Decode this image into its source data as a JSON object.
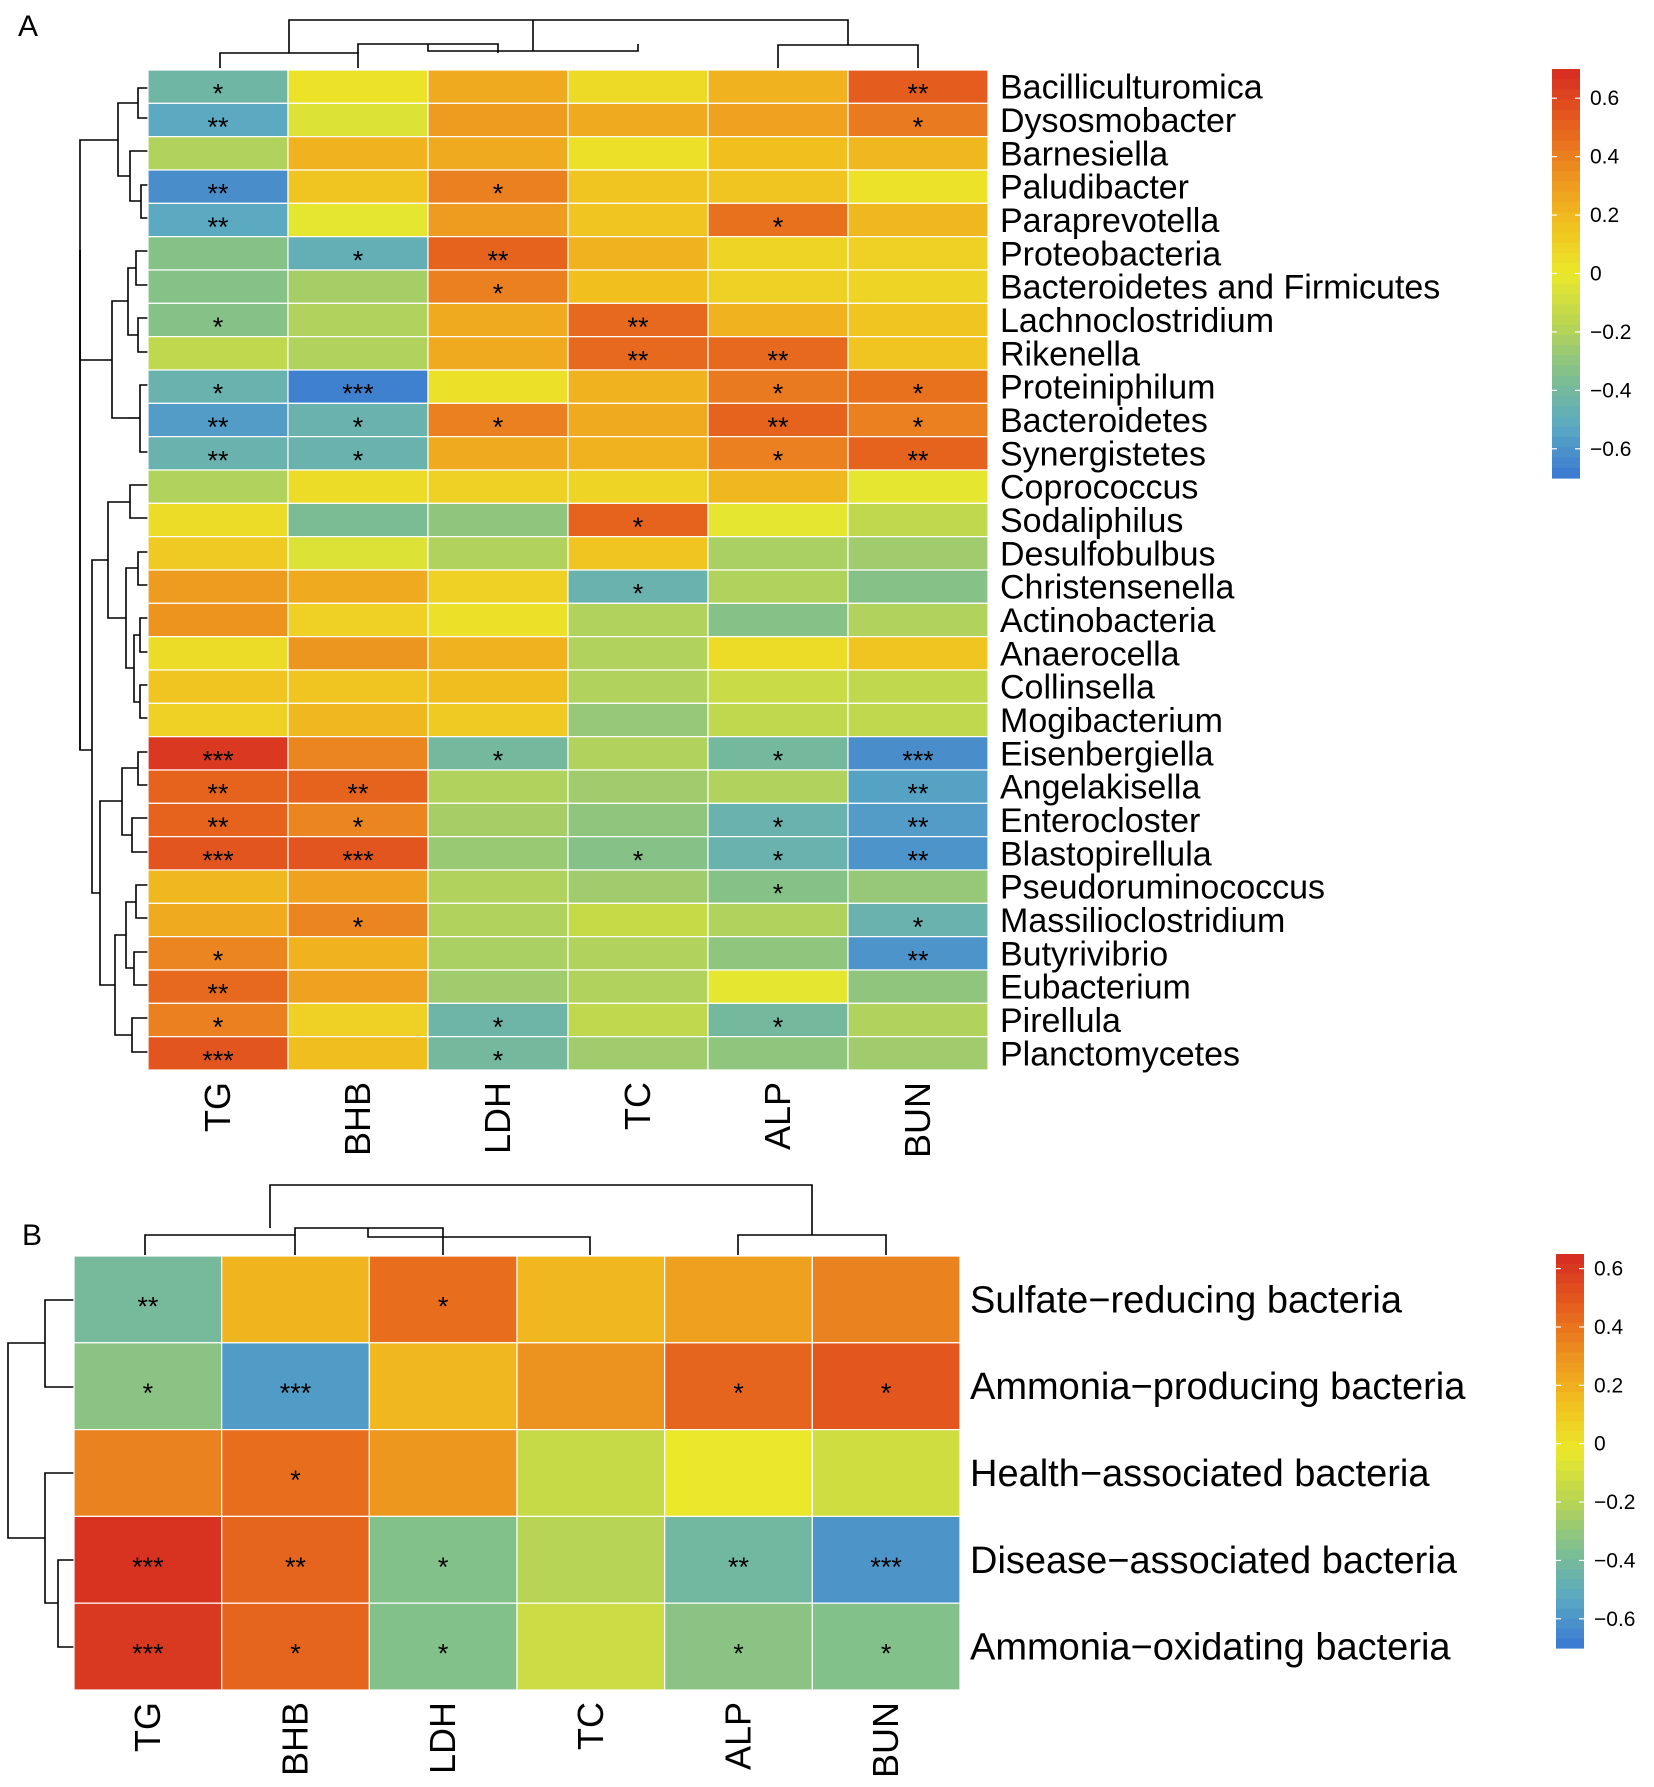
{
  "chart_data": [
    {
      "panel": "A",
      "type": "heatmap",
      "columns": [
        "TG",
        "BHB",
        "LDH",
        "TC",
        "ALP",
        "BUN"
      ],
      "rows": [
        "Bacilliculturomica",
        "Dysosmobacter",
        "Barnesiella",
        "Paludibacter",
        "Paraprevotella",
        "Proteobacteria",
        "Bacteroidetes and Firmicutes",
        "Lachnoclostridium",
        "Rikenella",
        "Proteiniphilum",
        "Bacteroidetes",
        "Synergistetes",
        "Coprococcus",
        "Sodaliphilus",
        "Desulfobulbus",
        "Christensenella",
        "Actinobacteria",
        "Anaerocella",
        "Collinsella",
        "Mogibacterium",
        "Eisenbergiella",
        "Angelakisella",
        "Enterocloster",
        "Blastopirellula",
        "Pseudoruminococcus",
        "Massilioclostridium",
        "Butyrivibrio",
        "Eubacterium",
        "Pirellula",
        "Planctomycetes"
      ],
      "values": [
        [
          -0.42,
          0.02,
          0.25,
          0.06,
          0.22,
          0.52
        ],
        [
          -0.52,
          -0.05,
          0.3,
          0.25,
          0.28,
          0.42
        ],
        [
          -0.2,
          0.22,
          0.25,
          0.03,
          0.17,
          0.2
        ],
        [
          -0.62,
          0.15,
          0.4,
          0.15,
          0.15,
          0.02
        ],
        [
          -0.52,
          -0.02,
          0.3,
          0.15,
          0.45,
          0.2
        ],
        [
          -0.33,
          -0.48,
          0.5,
          0.22,
          0.08,
          0.1
        ],
        [
          -0.33,
          -0.23,
          0.4,
          0.17,
          0.1,
          0.08
        ],
        [
          -0.33,
          -0.2,
          0.25,
          0.48,
          0.22,
          0.15
        ],
        [
          -0.15,
          -0.2,
          0.25,
          0.48,
          0.48,
          0.15
        ],
        [
          -0.45,
          -0.67,
          0.03,
          0.22,
          0.42,
          0.45
        ],
        [
          -0.57,
          -0.45,
          0.4,
          0.25,
          0.5,
          0.4
        ],
        [
          -0.45,
          -0.45,
          0.25,
          0.22,
          0.4,
          0.5
        ],
        [
          -0.2,
          0.05,
          0.1,
          0.08,
          0.2,
          -0.02
        ],
        [
          0.05,
          -0.37,
          -0.3,
          0.5,
          -0.02,
          -0.15
        ],
        [
          0.13,
          -0.05,
          -0.2,
          0.15,
          -0.22,
          -0.25
        ],
        [
          0.3,
          0.25,
          0.1,
          -0.45,
          -0.2,
          -0.33
        ],
        [
          0.33,
          0.1,
          0.03,
          -0.2,
          -0.33,
          -0.2
        ],
        [
          0.05,
          0.32,
          0.22,
          -0.2,
          0.05,
          0.15
        ],
        [
          0.15,
          0.15,
          0.18,
          -0.2,
          -0.12,
          -0.15
        ],
        [
          0.1,
          0.2,
          0.13,
          -0.28,
          -0.15,
          -0.15
        ],
        [
          0.65,
          0.38,
          -0.4,
          -0.2,
          -0.4,
          -0.62
        ],
        [
          0.5,
          0.5,
          -0.2,
          -0.25,
          -0.2,
          -0.55
        ],
        [
          0.5,
          0.38,
          -0.23,
          -0.3,
          -0.45,
          -0.57
        ],
        [
          0.55,
          0.55,
          -0.27,
          -0.33,
          -0.45,
          -0.6
        ],
        [
          0.2,
          0.28,
          -0.2,
          -0.25,
          -0.33,
          -0.28
        ],
        [
          0.25,
          0.38,
          -0.2,
          -0.13,
          -0.2,
          -0.45
        ],
        [
          0.38,
          0.22,
          -0.22,
          -0.2,
          -0.3,
          -0.6
        ],
        [
          0.48,
          0.28,
          -0.25,
          -0.2,
          -0.02,
          -0.3
        ],
        [
          0.4,
          0.1,
          -0.43,
          -0.15,
          -0.4,
          -0.2
        ],
        [
          0.55,
          0.18,
          -0.4,
          -0.25,
          -0.3,
          -0.25
        ]
      ],
      "stars": [
        [
          "*",
          "",
          "",
          "",
          "",
          "**"
        ],
        [
          "**",
          "",
          "",
          "",
          "",
          "*"
        ],
        [
          "",
          "",
          "",
          "",
          "",
          ""
        ],
        [
          "**",
          "",
          "*",
          "",
          "",
          ""
        ],
        [
          "**",
          "",
          "",
          "",
          "*",
          ""
        ],
        [
          "",
          "*",
          "**",
          "",
          "",
          ""
        ],
        [
          "",
          "",
          "*",
          "",
          "",
          ""
        ],
        [
          "*",
          "",
          "",
          "**",
          "",
          ""
        ],
        [
          "",
          "",
          "",
          "**",
          "**",
          ""
        ],
        [
          "*",
          "***",
          "",
          "",
          "*",
          "*"
        ],
        [
          "**",
          "*",
          "*",
          "",
          "**",
          "*"
        ],
        [
          "**",
          "*",
          "",
          "",
          "*",
          "**"
        ],
        [
          "",
          "",
          "",
          "",
          "",
          ""
        ],
        [
          "",
          "",
          "",
          "*",
          "",
          ""
        ],
        [
          "",
          "",
          "",
          "",
          "",
          ""
        ],
        [
          "",
          "",
          "",
          "*",
          "",
          ""
        ],
        [
          "",
          "",
          "",
          "",
          "",
          ""
        ],
        [
          "",
          "",
          "",
          "",
          "",
          ""
        ],
        [
          "",
          "",
          "",
          "",
          "",
          ""
        ],
        [
          "",
          "",
          "",
          "",
          "",
          ""
        ],
        [
          "***",
          "",
          "*",
          "",
          "*",
          "***"
        ],
        [
          "**",
          "**",
          "",
          "",
          "",
          "**"
        ],
        [
          "**",
          "*",
          "",
          "",
          "*",
          "**"
        ],
        [
          "***",
          "***",
          "",
          "*",
          "*",
          "**"
        ],
        [
          "",
          "",
          "",
          "",
          "*",
          ""
        ],
        [
          "",
          "*",
          "",
          "",
          "",
          "*"
        ],
        [
          "*",
          "",
          "",
          "",
          "",
          "**"
        ],
        [
          "**",
          "",
          "",
          "",
          "",
          ""
        ],
        [
          "*",
          "",
          "*",
          "",
          "*",
          ""
        ],
        [
          "***",
          "",
          "*",
          "",
          "",
          ""
        ]
      ],
      "color_scale": {
        "min": -0.7,
        "max": 0.7,
        "stops": [
          "#3a78d2",
          "#5aa9c3",
          "#7fbf8f",
          "#b9d553",
          "#ebe82a",
          "#f1bf1f",
          "#ec8e1f",
          "#e55c1e",
          "#d52a22"
        ],
        "ticks": [
          "0.6",
          "0.4",
          "0.2",
          "0",
          "−0.2",
          "−0.4",
          "−0.6"
        ]
      }
    },
    {
      "panel": "B",
      "type": "heatmap",
      "columns": [
        "TG",
        "BHB",
        "LDH",
        "TC",
        "ALP",
        "BUN"
      ],
      "rows": [
        "Sulfate−reducing bacteria",
        "Ammonia−producing bacteria",
        "Health−associated bacteria",
        "Disease−associated bacteria",
        "Ammonia−oxidating bacteria"
      ],
      "values": [
        [
          -0.4,
          0.18,
          0.42,
          0.17,
          0.25,
          0.35
        ],
        [
          -0.33,
          -0.58,
          0.17,
          0.3,
          0.45,
          0.5
        ],
        [
          0.35,
          0.42,
          0.28,
          -0.15,
          -0.02,
          -0.12
        ],
        [
          0.62,
          0.45,
          -0.35,
          -0.2,
          -0.42,
          -0.6
        ],
        [
          0.6,
          0.45,
          -0.35,
          -0.13,
          -0.33,
          -0.35
        ]
      ],
      "stars": [
        [
          "**",
          "",
          "*",
          "",
          "",
          ""
        ],
        [
          "*",
          "***",
          "",
          "",
          "*",
          "*"
        ],
        [
          "",
          "*",
          "",
          "",
          "",
          ""
        ],
        [
          "***",
          "**",
          "*",
          "",
          "**",
          "***"
        ],
        [
          "***",
          "*",
          "*",
          "",
          "*",
          "*"
        ]
      ],
      "color_scale": {
        "min": -0.7,
        "max": 0.65,
        "stops": [
          "#3a78d2",
          "#5aa9c3",
          "#7fbf8f",
          "#b9d553",
          "#ebe82a",
          "#f1bf1f",
          "#ec8e1f",
          "#e55c1e",
          "#d52a22"
        ],
        "ticks": [
          "0.6",
          "0.4",
          "0.2",
          "0",
          "−0.2",
          "−0.4",
          "−0.6"
        ]
      }
    }
  ]
}
